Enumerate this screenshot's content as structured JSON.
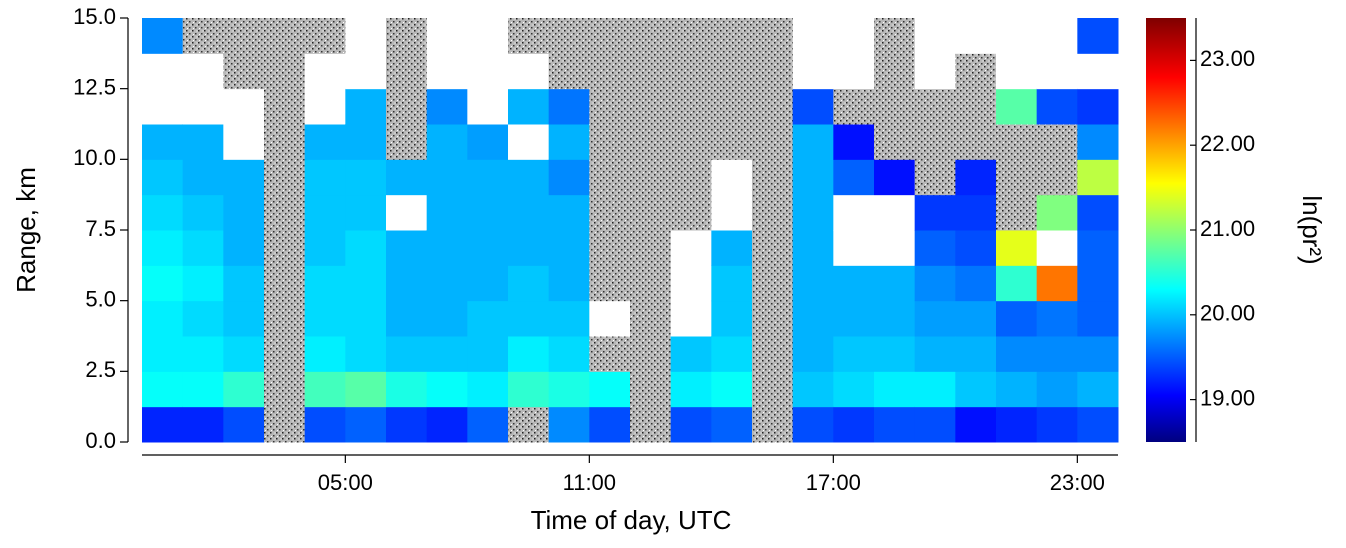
{
  "chart_data": {
    "type": "heatmap",
    "xlabel": "Time of day, UTC",
    "ylabel": "Range, km",
    "colorbar_label": "ln(pr²)",
    "colormap": "jet",
    "missing_color": "#b8b8b8",
    "over_color": "#ffffff",
    "time_bins": [
      0,
      1,
      2,
      3,
      4,
      5,
      6,
      7,
      8,
      9,
      10,
      11,
      12,
      13,
      14,
      15,
      16,
      17,
      18,
      19,
      20,
      21,
      22,
      23,
      24
    ],
    "range_bins": [
      0,
      1.25,
      2.5,
      3.75,
      5,
      6.25,
      7.5,
      8.75,
      10,
      11.25,
      12.5,
      13.75,
      15
    ],
    "z": [
      [
        19.3,
        20.4,
        20.3,
        20.3,
        20.4,
        20.3,
        20.2,
        20.1,
        20.0,
        24,
        24,
        19.8
      ],
      [
        19.3,
        20.4,
        20.3,
        20.2,
        20.3,
        20.2,
        20.1,
        20.0,
        20.0,
        24,
        24,
        null
      ],
      [
        19.5,
        20.6,
        20.2,
        20.1,
        20.1,
        20.0,
        20.0,
        20.0,
        24,
        24,
        null,
        null
      ],
      [
        null,
        null,
        null,
        null,
        null,
        null,
        null,
        null,
        null,
        null,
        null,
        null
      ],
      [
        19.5,
        20.7,
        20.3,
        20.2,
        20.2,
        20.1,
        20.1,
        20.1,
        20.0,
        24,
        24,
        null
      ],
      [
        19.6,
        20.8,
        20.2,
        20.2,
        20.2,
        20.2,
        20.1,
        20.1,
        20.0,
        20.0,
        24,
        24
      ],
      [
        19.4,
        20.5,
        20.1,
        20.0,
        20.0,
        20.0,
        24,
        20.0,
        null,
        null,
        null,
        null
      ],
      [
        19.3,
        20.4,
        20.1,
        20.0,
        20.0,
        20.0,
        20.0,
        20.0,
        20.0,
        19.8,
        24,
        24
      ],
      [
        19.6,
        20.3,
        20.1,
        20.1,
        20.0,
        20.0,
        20.0,
        20.0,
        19.9,
        24,
        24,
        24
      ],
      [
        null,
        20.6,
        20.3,
        20.1,
        20.1,
        20.0,
        20.0,
        20.0,
        24,
        20.0,
        24,
        null
      ],
      [
        19.8,
        20.5,
        20.2,
        20.1,
        20.0,
        20.0,
        20.0,
        19.8,
        20.0,
        19.7,
        null,
        null
      ],
      [
        19.5,
        20.4,
        null,
        24,
        null,
        null,
        null,
        null,
        null,
        null,
        null,
        null
      ],
      [
        null,
        null,
        null,
        null,
        null,
        null,
        null,
        null,
        null,
        null,
        null,
        null
      ],
      [
        19.5,
        20.3,
        20.1,
        24,
        24,
        24,
        null,
        null,
        null,
        null,
        null,
        null
      ],
      [
        19.6,
        20.4,
        20.2,
        20.1,
        20.1,
        20.0,
        24,
        24,
        null,
        null,
        null,
        null
      ],
      [
        null,
        null,
        null,
        null,
        null,
        null,
        null,
        null,
        null,
        null,
        null,
        null
      ],
      [
        19.5,
        20.1,
        20.0,
        20.0,
        20.0,
        20.0,
        20.0,
        20.0,
        20.0,
        19.5,
        24,
        24
      ],
      [
        19.4,
        20.2,
        20.1,
        20.0,
        20.0,
        24,
        24,
        19.6,
        19.2,
        null,
        24,
        24
      ],
      [
        19.5,
        20.3,
        20.1,
        20.0,
        20.0,
        24,
        24,
        19.2,
        null,
        null,
        null,
        null
      ],
      [
        19.5,
        20.3,
        20.0,
        19.9,
        19.8,
        19.6,
        19.4,
        null,
        null,
        null,
        24,
        24
      ],
      [
        19.2,
        20.1,
        20.0,
        19.9,
        19.7,
        19.5,
        19.4,
        19.3,
        null,
        null,
        null,
        24
      ],
      [
        19.3,
        20.0,
        19.8,
        19.6,
        20.6,
        21.5,
        null,
        null,
        null,
        20.8,
        24,
        24
      ],
      [
        19.4,
        19.9,
        19.8,
        19.7,
        22.3,
        24,
        21.0,
        null,
        null,
        19.5,
        24,
        24
      ],
      [
        19.5,
        20.0,
        19.8,
        19.6,
        19.6,
        19.6,
        19.5,
        21.3,
        19.8,
        19.4,
        24,
        19.5
      ]
    ],
    "xlim": [
      0,
      24
    ],
    "xticks": [
      {
        "value": 5,
        "label": "05:00"
      },
      {
        "value": 11,
        "label": "11:00"
      },
      {
        "value": 17,
        "label": "17:00"
      },
      {
        "value": 23,
        "label": "23:00"
      }
    ],
    "ylim": [
      0,
      15
    ],
    "yticks": [
      {
        "value": 0,
        "label": "0.0"
      },
      {
        "value": 2.5,
        "label": "2.5"
      },
      {
        "value": 5,
        "label": "5.0"
      },
      {
        "value": 7.5,
        "label": "7.5"
      },
      {
        "value": 10,
        "label": "10.0"
      },
      {
        "value": 12.5,
        "label": "12.5"
      },
      {
        "value": 15,
        "label": "15.0"
      }
    ],
    "zlim": [
      18.5,
      23.5
    ],
    "zticks": [
      {
        "value": 19,
        "label": "19.00"
      },
      {
        "value": 20,
        "label": "20.00"
      },
      {
        "value": 21,
        "label": "21.00"
      },
      {
        "value": 22,
        "label": "22.00"
      },
      {
        "value": 23,
        "label": "23.00"
      }
    ]
  }
}
